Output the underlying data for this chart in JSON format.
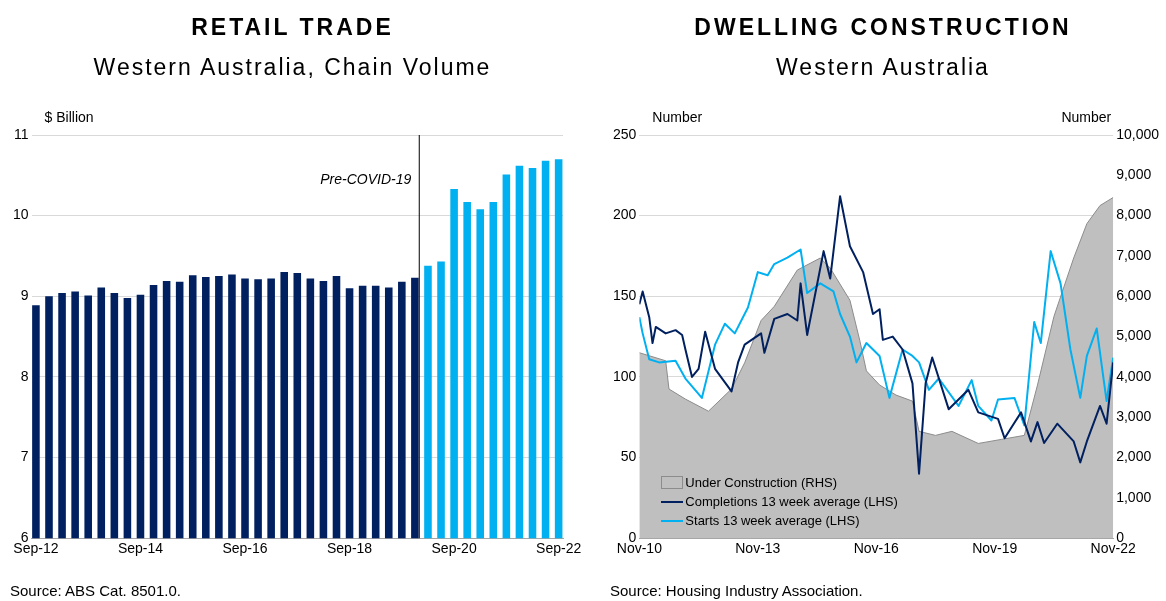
{
  "chart_data": [
    {
      "type": "bar",
      "title": "RETAIL TRADE",
      "subtitle": "Western Australia, Chain Volume",
      "ylabel": "$ Billion",
      "x": [
        "2012-09",
        "2012-12",
        "2013-03",
        "2013-06",
        "2013-09",
        "2013-12",
        "2014-03",
        "2014-06",
        "2014-09",
        "2014-12",
        "2015-03",
        "2015-06",
        "2015-09",
        "2015-12",
        "2016-03",
        "2016-06",
        "2016-09",
        "2016-12",
        "2017-03",
        "2017-06",
        "2017-09",
        "2017-12",
        "2018-03",
        "2018-06",
        "2018-09",
        "2018-12",
        "2019-03",
        "2019-06",
        "2019-09",
        "2019-12",
        "2020-03",
        "2020-06",
        "2020-09",
        "2020-12",
        "2021-03",
        "2021-06",
        "2021-09",
        "2021-12",
        "2022-03",
        "2022-06",
        "2022-09"
      ],
      "values": [
        8.89,
        9.0,
        9.04,
        9.06,
        9.01,
        9.11,
        9.04,
        8.98,
        9.02,
        9.14,
        9.19,
        9.18,
        9.26,
        9.24,
        9.25,
        9.27,
        9.22,
        9.21,
        9.22,
        9.3,
        9.29,
        9.22,
        9.19,
        9.25,
        9.1,
        9.13,
        9.13,
        9.11,
        9.18,
        9.23,
        9.38,
        9.43,
        10.33,
        10.17,
        10.08,
        10.17,
        10.51,
        10.62,
        10.59,
        10.68,
        10.7
      ],
      "colors": [
        "#002060",
        "#002060",
        "#002060",
        "#002060",
        "#002060",
        "#002060",
        "#002060",
        "#002060",
        "#002060",
        "#002060",
        "#002060",
        "#002060",
        "#002060",
        "#002060",
        "#002060",
        "#002060",
        "#002060",
        "#002060",
        "#002060",
        "#002060",
        "#002060",
        "#002060",
        "#002060",
        "#002060",
        "#002060",
        "#002060",
        "#002060",
        "#002060",
        "#002060",
        "#002060",
        "#00b0f0",
        "#00b0f0",
        "#00b0f0",
        "#00b0f0",
        "#00b0f0",
        "#00b0f0",
        "#00b0f0",
        "#00b0f0",
        "#00b0f0",
        "#00b0f0",
        "#00b0f0"
      ],
      "xlim": [
        "2012-08",
        "2022-10"
      ],
      "xticks": [
        {
          "value": "2012-09",
          "label": "Sep-12"
        },
        {
          "value": "2014-09",
          "label": "Sep-14"
        },
        {
          "value": "2016-09",
          "label": "Sep-16"
        },
        {
          "value": "2018-09",
          "label": "Sep-18"
        },
        {
          "value": "2020-09",
          "label": "Sep-20"
        },
        {
          "value": "2022-09",
          "label": "Sep-22"
        }
      ],
      "ylim": [
        6,
        11
      ],
      "yticks": [
        6,
        7,
        8,
        9,
        10,
        11
      ],
      "grid": "y",
      "ref_lines": [
        {
          "axis": "x",
          "value": "2020-01",
          "label": "Pre-COVID-19",
          "color": "#000000"
        }
      ],
      "annotations": [
        "Source: ABS Cat. 8501.0."
      ],
      "legend": false
    },
    {
      "type": "line",
      "title": "DWELLING CONSTRUCTION",
      "subtitle": "Western Australia",
      "ylabel": "Number",
      "y2label": "Number",
      "series": [
        {
          "name": "Under Construction (RHS)",
          "type": "area",
          "axis": "y2",
          "color": "#bfbfbf",
          "x": [
            "2010-11",
            "2011-07",
            "2011-08",
            "2012-01",
            "2012-08",
            "2013-03",
            "2013-07",
            "2013-12",
            "2014-04",
            "2014-11",
            "2015-06",
            "2015-09",
            "2016-03",
            "2016-06",
            "2016-08",
            "2016-12",
            "2017-05",
            "2017-10",
            "2017-12",
            "2018-05",
            "2018-10",
            "2019-06",
            "2020-01",
            "2020-08",
            "2020-12",
            "2021-05",
            "2021-11",
            "2022-03",
            "2022-07",
            "2022-11"
          ],
          "values": [
            4600,
            4400,
            3700,
            3450,
            3150,
            3700,
            4350,
            5400,
            5750,
            6650,
            6950,
            6700,
            5900,
            4900,
            4150,
            3800,
            3550,
            3400,
            2650,
            2550,
            2650,
            2350,
            2450,
            2550,
            3800,
            5500,
            6950,
            7800,
            8250,
            8450
          ]
        },
        {
          "name": "Completions 13 week average (LHS)",
          "color": "#002060",
          "x": [
            "2010-11",
            "2010-12",
            "2011-02",
            "2011-03",
            "2011-04",
            "2011-07",
            "2011-10",
            "2011-12",
            "2012-01",
            "2012-03",
            "2012-05",
            "2012-07",
            "2012-10",
            "2013-03",
            "2013-05",
            "2013-07",
            "2013-12",
            "2014-01",
            "2014-04",
            "2014-08",
            "2014-11",
            "2014-12",
            "2015-02",
            "2015-07",
            "2015-09",
            "2015-12",
            "2016-03",
            "2016-07",
            "2016-10",
            "2016-12",
            "2017-01",
            "2017-04",
            "2017-07",
            "2017-10",
            "2017-12",
            "2018-02",
            "2018-04",
            "2018-09",
            "2019-03",
            "2019-06",
            "2019-12",
            "2020-02",
            "2020-07",
            "2020-10",
            "2020-12",
            "2021-02",
            "2021-06",
            "2021-11",
            "2022-01",
            "2022-03",
            "2022-07",
            "2022-09",
            "2022-11"
          ],
          "values": [
            145,
            153,
            137,
            121,
            131,
            127,
            129,
            126,
            117,
            100,
            105,
            128,
            105,
            91,
            109,
            120,
            127,
            115,
            136,
            139,
            135,
            158,
            126,
            178,
            161,
            212,
            181,
            165,
            139,
            142,
            123,
            125,
            117,
            96,
            40,
            96,
            112,
            80,
            92,
            78,
            74,
            62,
            78,
            60,
            72,
            59,
            71,
            60,
            47,
            60,
            82,
            71,
            109
          ]
        },
        {
          "name": "Starts 13 week average (LHS)",
          "color": "#00b0f0",
          "x": [
            "2010-11",
            "2010-12",
            "2011-02",
            "2011-05",
            "2011-10",
            "2012-01",
            "2012-06",
            "2012-10",
            "2013-01",
            "2013-04",
            "2013-08",
            "2013-11",
            "2014-02",
            "2014-04",
            "2014-08",
            "2014-12",
            "2015-02",
            "2015-06",
            "2015-10",
            "2015-12",
            "2016-03",
            "2016-05",
            "2016-08",
            "2016-12",
            "2017-03",
            "2017-07",
            "2017-10",
            "2017-12",
            "2018-03",
            "2018-06",
            "2018-12",
            "2019-04",
            "2019-06",
            "2019-10",
            "2019-12",
            "2020-05",
            "2020-08",
            "2020-11",
            "2021-01",
            "2021-04",
            "2021-07",
            "2021-10",
            "2022-01",
            "2022-03",
            "2022-06",
            "2022-09",
            "2022-11"
          ],
          "values": [
            137,
            127,
            111,
            109,
            110,
            99,
            87,
            120,
            133,
            127,
            143,
            165,
            163,
            170,
            174,
            179,
            152,
            158,
            153,
            139,
            125,
            109,
            121,
            113,
            87,
            117,
            113,
            109,
            92,
            99,
            82,
            98,
            82,
            73,
            86,
            87,
            70,
            134,
            121,
            178,
            158,
            117,
            87,
            113,
            130,
            85,
            112
          ]
        }
      ],
      "xlim": [
        "2010-11",
        "2022-11"
      ],
      "xticks": [
        {
          "value": "2010-11",
          "label": "Nov-10"
        },
        {
          "value": "2013-11",
          "label": "Nov-13"
        },
        {
          "value": "2016-11",
          "label": "Nov-16"
        },
        {
          "value": "2019-11",
          "label": "Nov-19"
        },
        {
          "value": "2022-11",
          "label": "Nov-22"
        }
      ],
      "ylim": [
        0,
        250
      ],
      "yticks": [
        0,
        50,
        100,
        150,
        200,
        250
      ],
      "y2lim": [
        0,
        10000
      ],
      "y2ticks": [
        0,
        {
          "value": 1000,
          "label": "1,000"
        },
        {
          "value": 2000,
          "label": "2,000"
        },
        {
          "value": 3000,
          "label": "3,000"
        },
        {
          "value": 4000,
          "label": "4,000"
        },
        {
          "value": 5000,
          "label": "5,000"
        },
        {
          "value": 6000,
          "label": "6,000"
        },
        {
          "value": 7000,
          "label": "7,000"
        },
        {
          "value": 8000,
          "label": "8,000"
        },
        {
          "value": 9000,
          "label": "9,000"
        },
        {
          "value": 10000,
          "label": "10,000"
        }
      ],
      "grid": "y",
      "marker": "none",
      "line_style": "solid",
      "legend": "bottom left",
      "annotations": [
        "Source: Housing Industry Association."
      ]
    }
  ]
}
